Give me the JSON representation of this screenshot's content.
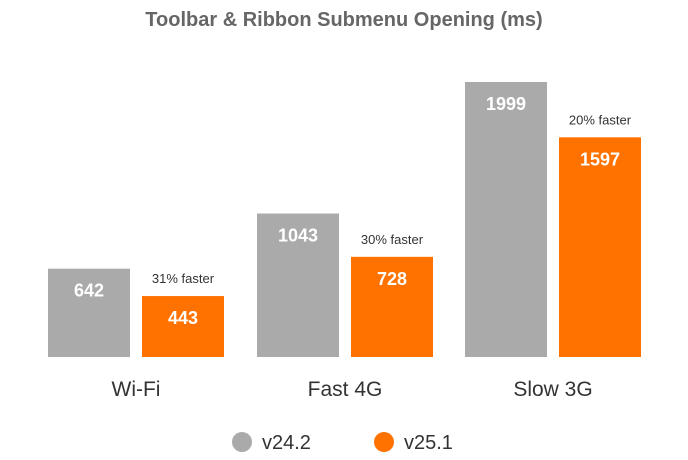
{
  "chart_data": {
    "type": "bar",
    "title": "Toolbar & Ribbon Submenu Opening (ms)",
    "categories": [
      "Wi-Fi",
      "Fast 4G",
      "Slow 3G"
    ],
    "series": [
      {
        "name": "v24.2",
        "values": [
          642,
          1043,
          1999
        ],
        "color": "#aaaaaa"
      },
      {
        "name": "v25.1",
        "values": [
          443,
          728,
          1597
        ],
        "color": "#ff7200"
      }
    ],
    "annotations": [
      "31% faster",
      "30% faster",
      "20% faster"
    ],
    "ylim": [
      0,
      2200
    ],
    "grid": false,
    "legend": "bottom-center",
    "xlabel": "",
    "ylabel": ""
  }
}
